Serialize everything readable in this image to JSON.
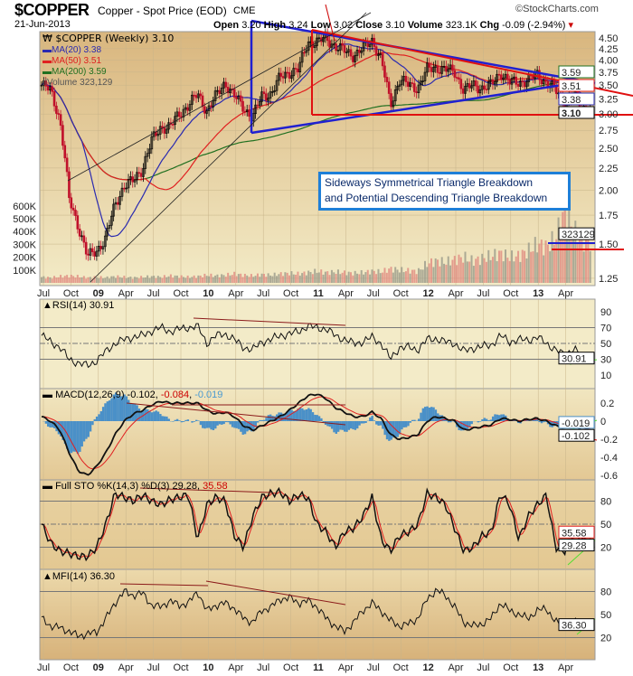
{
  "header": {
    "symbol": "$COPPER",
    "name": "Copper - Spot Price (EOD)",
    "exchange": "CME",
    "date": "21-Jun-2013",
    "watermark": "©StockCharts.com",
    "ohlc_line": {
      "open_label": "Open",
      "open": "3.20",
      "high_label": "High",
      "high": "3.24",
      "low_label": "Low",
      "low": "3.02",
      "close_label": "Close",
      "close": "3.10",
      "volume_label": "Volume",
      "volume": "323.1K",
      "chg_label": "Chg",
      "chg": "-0.09 (-2.94%)"
    }
  },
  "annotation": {
    "line1": "Sideways Symmetrical Triangle Breakdown",
    "line2": "and Potential Descending Triangle Breakdown"
  },
  "colors": {
    "ma20": "#2a2ab0",
    "ma50": "#e02020",
    "ma200": "#207020",
    "up": "#000000",
    "down": "#c0102a",
    "trend_blue": "#2020d0",
    "trend_red": "#e01010",
    "note_border": "#1e7fd8"
  },
  "chart_data": [
    {
      "type": "candlestick",
      "title": "$COPPER (Weekly) 3.10",
      "scale": "log",
      "ylim": [
        1.2,
        4.65
      ],
      "y_ticks": [
        "4.50",
        "4.25",
        "4.00",
        "3.75",
        "3.50",
        "3.25",
        "3.00",
        "2.75",
        "2.50",
        "2.25",
        "2.00",
        "1.75",
        "1.50",
        "1.25"
      ],
      "x_ticks": [
        "Jul",
        "Oct",
        "09",
        "Apr",
        "Jul",
        "Oct",
        "10",
        "Apr",
        "Jul",
        "Oct",
        "11",
        "Apr",
        "Jul",
        "Oct",
        "12",
        "Apr",
        "Jul",
        "Oct",
        "13",
        "Apr"
      ],
      "monthly_close_approx": [
        3.5,
        3.4,
        2.9,
        1.9,
        1.65,
        1.4,
        1.45,
        1.55,
        1.85,
        2.05,
        2.1,
        2.25,
        2.6,
        2.8,
        2.8,
        3.0,
        3.15,
        3.33,
        3.05,
        3.3,
        3.55,
        3.3,
        3.1,
        2.95,
        3.3,
        3.35,
        3.65,
        3.75,
        3.8,
        4.4,
        4.4,
        4.5,
        4.3,
        4.2,
        4.1,
        4.25,
        4.45,
        4.0,
        3.15,
        3.6,
        3.5,
        3.45,
        3.8,
        3.85,
        3.8,
        3.75,
        3.4,
        3.5,
        3.45,
        3.5,
        3.75,
        3.55,
        3.55,
        3.6,
        3.7,
        3.55,
        3.4,
        3.2,
        3.3,
        3.1
      ],
      "legend": [
        {
          "name": "MA(20)",
          "value": "3.38",
          "label": "MA(20) 3.38"
        },
        {
          "name": "MA(50)",
          "value": "3.51",
          "label": "MA(50) 3.51"
        },
        {
          "name": "MA(200)",
          "value": "3.59",
          "label": "MA(200) 3.59"
        },
        {
          "name": "Volume",
          "value": "323,129",
          "label": "Volume 323,129"
        }
      ],
      "last_tags": {
        "ma200": "3.59",
        "ma50": "3.51",
        "ma20": "3.38",
        "close": "3.10",
        "volume": "323129"
      },
      "volume": {
        "y_ticks": [
          "600K",
          "500K",
          "400K",
          "300K",
          "200K",
          "100K"
        ],
        "monthly_k_approx": [
          45,
          40,
          50,
          55,
          50,
          40,
          45,
          40,
          50,
          45,
          40,
          45,
          50,
          45,
          55,
          50,
          45,
          50,
          60,
          55,
          60,
          70,
          60,
          55,
          65,
          60,
          70,
          75,
          70,
          80,
          90,
          80,
          85,
          80,
          75,
          80,
          90,
          85,
          110,
          100,
          95,
          90,
          150,
          170,
          160,
          180,
          200,
          170,
          190,
          210,
          230,
          200,
          210,
          250,
          300,
          280,
          350,
          560,
          400,
          323
        ]
      }
    },
    {
      "type": "line",
      "title": "RSI(14) 30.91",
      "ylim": [
        0,
        100
      ],
      "y_ticks": [
        "90",
        "70",
        "50",
        "30",
        "10"
      ],
      "last_tag": "30.91",
      "monthly_approx": [
        60,
        52,
        45,
        30,
        25,
        22,
        28,
        40,
        50,
        55,
        58,
        60,
        66,
        70,
        65,
        68,
        70,
        72,
        50,
        60,
        62,
        55,
        45,
        42,
        52,
        55,
        60,
        62,
        65,
        72,
        70,
        68,
        60,
        55,
        50,
        52,
        58,
        50,
        30,
        45,
        45,
        42,
        55,
        56,
        52,
        50,
        40,
        44,
        46,
        48,
        60,
        52,
        55,
        54,
        58,
        50,
        42,
        35,
        44,
        31
      ]
    },
    {
      "type": "line",
      "title_prefix": "MACD(12,26,9)",
      "macd": "-0.102",
      "signal": "-0.084",
      "histogram": "-0.019",
      "ylim": [
        -0.7,
        0.35
      ],
      "y_ticks": [
        "0.2",
        "0",
        "-0.2",
        "-0.4",
        "-0.6"
      ],
      "last_tags": [
        "-0.019",
        "-0.102"
      ],
      "macd_monthly_approx": [
        0.05,
        0.0,
        -0.1,
        -0.35,
        -0.55,
        -0.6,
        -0.5,
        -0.35,
        -0.15,
        0.0,
        0.08,
        0.12,
        0.18,
        0.22,
        0.2,
        0.2,
        0.2,
        0.2,
        0.12,
        0.08,
        0.1,
        0.05,
        -0.05,
        -0.1,
        -0.05,
        0.0,
        0.05,
        0.12,
        0.2,
        0.28,
        0.3,
        0.25,
        0.15,
        0.1,
        0.05,
        0.05,
        0.1,
        0.03,
        -0.15,
        -0.2,
        -0.18,
        -0.15,
        0.0,
        0.05,
        0.03,
        0.0,
        -0.1,
        -0.08,
        -0.06,
        -0.04,
        0.03,
        0.02,
        0.0,
        0.02,
        0.03,
        0.0,
        -0.05,
        -0.08,
        -0.06,
        -0.1
      ]
    },
    {
      "type": "line",
      "title_prefix": "Full STO %K(14,3) %D(3)",
      "k": "29.28",
      "d": "35.58",
      "ylim": [
        0,
        100
      ],
      "y_ticks": [
        "80",
        "50",
        "20"
      ],
      "last_tags": [
        "35.58",
        "29.28"
      ],
      "k_monthly_approx": [
        50,
        25,
        15,
        12,
        8,
        8,
        20,
        50,
        90,
        85,
        80,
        88,
        80,
        75,
        82,
        85,
        88,
        30,
        75,
        85,
        80,
        35,
        20,
        60,
        85,
        90,
        92,
        80,
        88,
        85,
        50,
        40,
        20,
        40,
        45,
        60,
        85,
        30,
        15,
        35,
        40,
        50,
        90,
        85,
        75,
        45,
        15,
        20,
        35,
        40,
        90,
        75,
        30,
        60,
        75,
        88,
        20,
        15,
        40,
        29
      ]
    },
    {
      "type": "line",
      "title": "MFI(14) 36.30",
      "ylim": [
        0,
        100
      ],
      "y_ticks": [
        "80",
        "50",
        "20"
      ],
      "last_tag": "36.30",
      "monthly_approx": [
        45,
        35,
        33,
        28,
        22,
        25,
        27,
        45,
        65,
        80,
        75,
        78,
        62,
        60,
        68,
        62,
        65,
        80,
        55,
        62,
        65,
        58,
        45,
        40,
        55,
        60,
        70,
        72,
        65,
        68,
        60,
        45,
        35,
        28,
        40,
        55,
        65,
        55,
        42,
        35,
        38,
        45,
        70,
        82,
        75,
        60,
        40,
        35,
        38,
        45,
        65,
        55,
        50,
        45,
        55,
        58,
        40,
        35,
        40,
        36
      ]
    }
  ]
}
